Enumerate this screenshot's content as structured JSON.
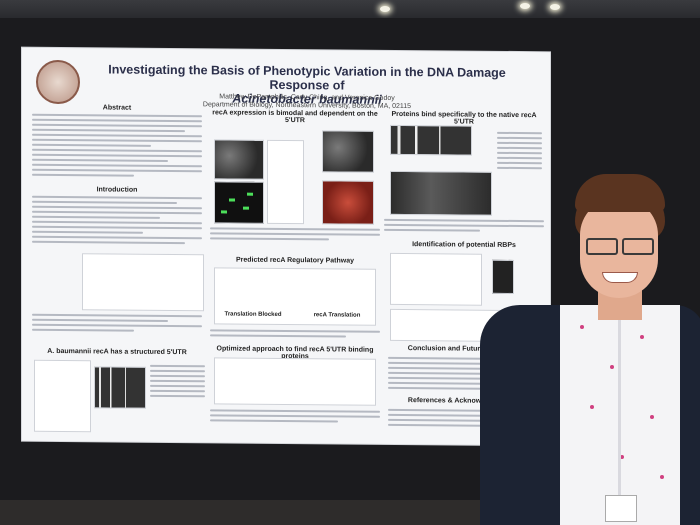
{
  "poster": {
    "title_line1": "Investigating the Basis of Phenotypic Variation in the DNA Damage Response of",
    "title_line2": "Acinetobacter baumannii",
    "authors": "Matthew DePamphilis, Carly Ching, and Veronica Godoy",
    "affiliation": "Department of Biology, Northeastern University, Boston, MA, 02115",
    "sections": {
      "abstract": "Abstract",
      "reca_expression": "recA expression is bimodal and dependent on the 5'UTR",
      "protein_bind": "Proteins bind specifically to the native recA 5'UTR",
      "introduction": "Introduction",
      "identification": "Identification of potential RBPs",
      "pathway": "Predicted recA Regulatory Pathway",
      "structured": "A. baumannii recA has a structured 5'UTR",
      "optimized": "Optimized approach to find recA 5'UTR binding proteins",
      "conclusion": "Conclusion and Future Directions",
      "references": "References & Acknowledgements"
    },
    "labels": {
      "translation_blocked": "Translation Blocked",
      "reca_translation": "recA Translation"
    }
  }
}
